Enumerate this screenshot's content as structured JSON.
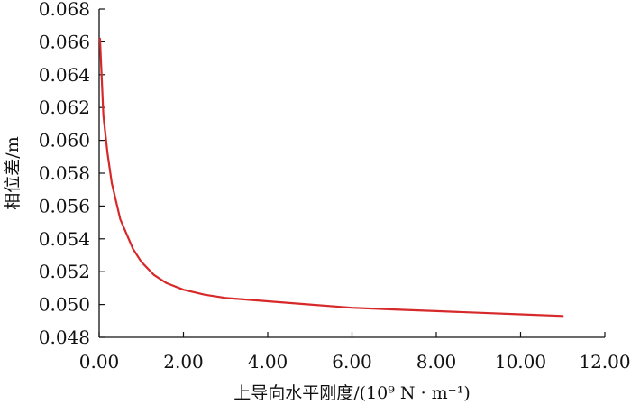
{
  "chart_data": {
    "type": "line",
    "xlabel": "上导向水平刚度/(10⁹ N · m⁻¹)",
    "ylabel": "相位差/m",
    "xlim": [
      0,
      12
    ],
    "ylim": [
      0.048,
      0.068
    ],
    "x_ticks": [
      "0.00",
      "2.00",
      "4.00",
      "6.00",
      "8.00",
      "10.00",
      "12.00"
    ],
    "y_ticks": [
      "0.048",
      "0.050",
      "0.052",
      "0.054",
      "0.056",
      "0.058",
      "0.060",
      "0.062",
      "0.064",
      "0.066",
      "0.068"
    ],
    "grid": false,
    "series": [
      {
        "color": "#d7282a",
        "x": [
          0.02,
          0.1,
          0.2,
          0.3,
          0.5,
          0.8,
          1.0,
          1.3,
          1.6,
          2.0,
          2.5,
          3.0,
          4.0,
          5.0,
          6.0,
          7.0,
          8.0,
          9.0,
          10.0,
          11.0
        ],
        "y": [
          0.0662,
          0.0615,
          0.0592,
          0.0574,
          0.0552,
          0.0534,
          0.0526,
          0.0518,
          0.0513,
          0.0509,
          0.0506,
          0.0504,
          0.0502,
          0.05,
          0.0498,
          0.0497,
          0.0496,
          0.0495,
          0.0494,
          0.0493
        ]
      }
    ]
  }
}
